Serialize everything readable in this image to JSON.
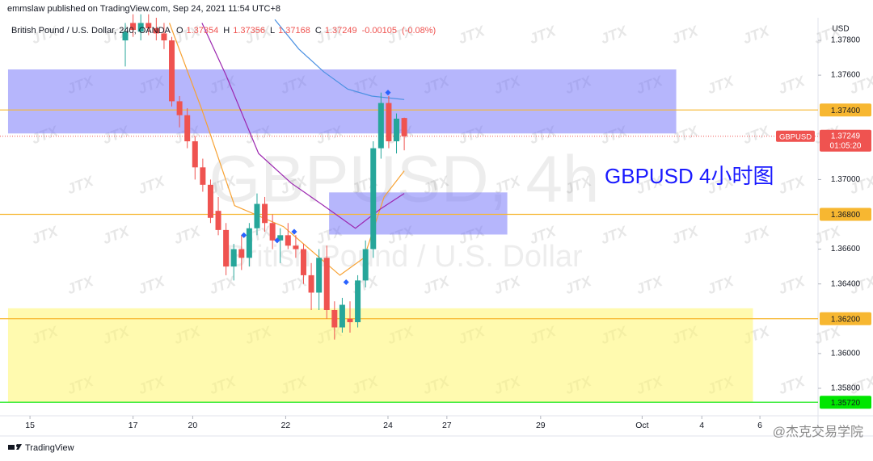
{
  "header": "emmslaw published on TradingView.com, Sep 24, 2021 11:54 UTC+8",
  "chart_data": {
    "type": "candlestick",
    "title": "British Pound / U.S. Dollar, 240, OANDA",
    "legend_values": [
      {
        "label": "O",
        "value": 1.37354
      },
      {
        "label": "H",
        "value": 1.37356
      },
      {
        "label": "L",
        "value": 1.37168
      },
      {
        "label": "C",
        "value": 1.37249
      }
    ],
    "change": -0.00105,
    "change_pct": "(-0.08%)",
    "watermark": "GBPUSD, 4h",
    "watermark_subtitle": "British Pound / U.S. Dollar",
    "annotation": "GBPUSD 4小时图",
    "y_axis_label": "USD",
    "up_color": "#26a69a",
    "down_color": "#ef5350",
    "x": [
      15,
      16,
      17,
      18,
      19,
      20,
      21,
      22,
      23,
      24,
      25,
      26,
      27,
      28,
      29,
      30,
      31,
      32,
      33,
      34,
      35,
      36,
      37,
      38,
      39,
      40,
      41,
      42,
      43,
      44,
      45,
      46,
      47,
      48,
      49,
      50,
      51
    ],
    "open": [
      1.378,
      1.379,
      1.3785,
      1.379,
      1.3787,
      1.3784,
      1.378,
      1.3745,
      1.3737,
      1.3722,
      1.3707,
      1.3697,
      1.3682,
      1.3671,
      1.365,
      1.366,
      1.3655,
      1.3672,
      1.3686,
      1.3675,
      1.3665,
      1.3668,
      1.3662,
      1.366,
      1.3645,
      1.3635,
      1.3655,
      1.3625,
      1.3615,
      1.362,
      1.3618,
      1.3642,
      1.366,
      1.3718,
      1.3744,
      1.3722,
      1.37354
    ],
    "high": [
      1.379,
      1.3795,
      1.3795,
      1.3795,
      1.3793,
      1.379,
      1.3782,
      1.3748,
      1.3741,
      1.3725,
      1.3712,
      1.37,
      1.369,
      1.3675,
      1.3663,
      1.3668,
      1.3675,
      1.3692,
      1.369,
      1.368,
      1.3672,
      1.3675,
      1.3668,
      1.3663,
      1.3652,
      1.366,
      1.3662,
      1.363,
      1.3632,
      1.363,
      1.3645,
      1.3665,
      1.3722,
      1.375,
      1.3748,
      1.3738,
      1.37356
    ],
    "low": [
      1.3765,
      1.3782,
      1.378,
      1.3783,
      1.378,
      1.3775,
      1.3742,
      1.373,
      1.3718,
      1.37,
      1.3693,
      1.3675,
      1.3668,
      1.3645,
      1.3642,
      1.3648,
      1.365,
      1.3668,
      1.367,
      1.366,
      1.3652,
      1.366,
      1.3655,
      1.364,
      1.3625,
      1.3625,
      1.362,
      1.3608,
      1.3612,
      1.3612,
      1.3615,
      1.3638,
      1.3655,
      1.3712,
      1.3718,
      1.3715,
      1.37168
    ],
    "close": [
      1.3785,
      1.3786,
      1.379,
      1.3787,
      1.3784,
      1.378,
      1.3745,
      1.3737,
      1.3722,
      1.3707,
      1.3697,
      1.3678,
      1.3671,
      1.365,
      1.366,
      1.3655,
      1.3672,
      1.3686,
      1.3675,
      1.3665,
      1.3668,
      1.3662,
      1.366,
      1.3645,
      1.3635,
      1.3655,
      1.3625,
      1.3615,
      1.3628,
      1.3618,
      1.3642,
      1.366,
      1.3718,
      1.3744,
      1.3722,
      1.3735,
      1.37249
    ],
    "lines": [
      {
        "color": "#f7a233",
        "x": [
          20.7,
          24.9,
          29.1,
          35.4,
          42.7,
          45.8,
          48.4,
          51.0
        ],
        "values": [
          1.379,
          1.374,
          1.3685,
          1.3673,
          1.3645,
          1.3655,
          1.369,
          1.3705
        ]
      },
      {
        "color": "#9c27b0",
        "x": [
          24.9,
          28.0,
          32.2,
          36.4,
          40.6,
          44.7,
          47.9,
          51.0
        ],
        "values": [
          1.379,
          1.376,
          1.3715,
          1.3698,
          1.3685,
          1.3672,
          1.3683,
          1.3692
        ]
      },
      {
        "color": "#4a90e2",
        "x": [
          34.3,
          37.4,
          40.6,
          43.7,
          46.8,
          51.0
        ],
        "values": [
          1.3792,
          1.3775,
          1.3762,
          1.3752,
          1.3748,
          1.3746
        ]
      }
    ],
    "markers": {
      "color": "#2962ff",
      "x": [
        30.3,
        34.6,
        36.8,
        43.5,
        48.9
      ],
      "values": [
        1.3668,
        1.3665,
        1.367,
        1.3641,
        1.375
      ]
    },
    "zones": [
      {
        "color": "rgba(110,110,250,0.5)",
        "x": [
          -0.13,
          86.1
        ],
        "y": [
          1.37265,
          1.37633
        ]
      },
      {
        "color": "rgba(110,110,250,0.5)",
        "x": [
          41.3,
          64.3
        ],
        "y": [
          1.36684,
          1.36926
        ]
      },
      {
        "color": "rgba(255,245,110,0.55)",
        "x": [
          -0.13,
          96.0
        ],
        "y": [
          1.35721,
          1.3626
        ]
      }
    ],
    "hlines": [
      {
        "value": 1.374,
        "label": "1.37400",
        "color": "#f7b731"
      },
      {
        "value": 1.368,
        "label": "1.36800",
        "color": "#f7b731"
      },
      {
        "value": 1.362,
        "label": "1.36200",
        "color": "#f7b731"
      },
      {
        "value": 1.3572,
        "label": "1.35720",
        "color": "#00e600"
      }
    ],
    "last_price": {
      "value": 1.37249,
      "label": "1.37249",
      "symbol": "GBPUSD",
      "countdown": "01:05:20",
      "color": "#ef5350"
    },
    "xlim": [
      -1.17,
      104.4
    ],
    "ylim": [
      1.35642,
      1.3793
    ],
    "xticks": [
      {
        "value": 2.7,
        "label": "15"
      },
      {
        "value": 16.0,
        "label": "17"
      },
      {
        "value": 23.7,
        "label": "20"
      },
      {
        "value": 35.7,
        "label": "22"
      },
      {
        "value": 48.9,
        "label": "24"
      },
      {
        "value": 56.5,
        "label": "27"
      },
      {
        "value": 68.6,
        "label": "29"
      },
      {
        "value": 81.7,
        "label": "Oct"
      },
      {
        "value": 89.4,
        "label": "4"
      },
      {
        "value": 96.9,
        "label": "6"
      }
    ],
    "yticks": [
      {
        "value": 1.378,
        "label": "1.37800"
      },
      {
        "value": 1.376,
        "label": "1.37600"
      },
      {
        "value": 1.37,
        "label": "1.37000"
      },
      {
        "value": 1.366,
        "label": "1.36600"
      },
      {
        "value": 1.364,
        "label": "1.36400"
      },
      {
        "value": 1.36,
        "label": "1.36000"
      },
      {
        "value": 1.358,
        "label": "1.35800"
      }
    ]
  },
  "branding": "TradingView",
  "credit": "@杰克交易学院",
  "watermark_tile": "JTX"
}
